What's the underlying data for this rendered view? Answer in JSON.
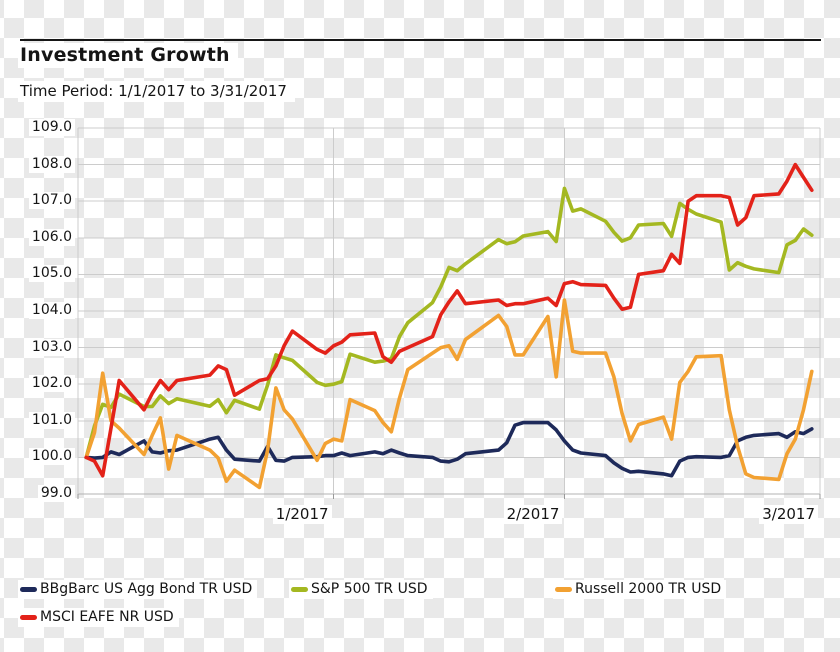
{
  "title": "Investment Growth",
  "subtitle": "Time Period: 1/1/2017 to 3/31/2017",
  "colors": {
    "bond_navy": "#1e2a5a",
    "sp500_green": "#a4b821",
    "russell_orange": "#f2a132",
    "eafe_red": "#e32219",
    "gridline": "#cccccc",
    "axis_border": "#b3b3b3",
    "tick": "#999999",
    "text": "#151515",
    "top_rule": "#161616",
    "checker_gray": "#e9e9e9",
    "checker_white": "#ffffff",
    "label_box": "#ffffff"
  },
  "chart_data": {
    "type": "line",
    "title": "Investment Growth",
    "subtitle": "Time Period: 1/1/2017 to 3/31/2017",
    "grid": true,
    "legend_position": "bottom",
    "ylim": [
      99.0,
      109.0
    ],
    "y_tick_labels": [
      "109.0",
      "108.0",
      "107.0",
      "106.0",
      "105.0",
      "104.0",
      "103.0",
      "102.0",
      "101.0",
      "100.0",
      "99.0"
    ],
    "x_ticks": [
      "1/2017",
      "2/2017",
      "3/2017"
    ],
    "x_tick_days": [
      31,
      59,
      90
    ],
    "x_axis_range_days": [
      0,
      90
    ],
    "x_unit": "calendar day offset from 1/1/2017, one point per trading day",
    "x": [
      1,
      2,
      3,
      4,
      5,
      8,
      9,
      10,
      11,
      12,
      16,
      17,
      18,
      19,
      22,
      23,
      24,
      25,
      26,
      29,
      30,
      31,
      32,
      33,
      36,
      37,
      38,
      39,
      40,
      43,
      44,
      45,
      46,
      47,
      51,
      52,
      53,
      54,
      57,
      58,
      59,
      60,
      61,
      64,
      65,
      66,
      67,
      68,
      71,
      72,
      73,
      74,
      75,
      78,
      79,
      80,
      81,
      82,
      85,
      86,
      87,
      88,
      89
    ],
    "series": [
      {
        "name": "BBgBarc US Agg Bond TR USD",
        "color": "#1e2a5a",
        "values": [
          100.0,
          99.98,
          100.0,
          100.15,
          100.08,
          100.45,
          100.15,
          100.12,
          100.18,
          100.2,
          100.5,
          100.55,
          100.2,
          99.95,
          99.9,
          100.3,
          99.92,
          99.9,
          100.0,
          100.02,
          100.05,
          100.05,
          100.12,
          100.05,
          100.15,
          100.1,
          100.2,
          100.12,
          100.05,
          100.0,
          99.9,
          99.88,
          99.95,
          100.1,
          100.2,
          100.4,
          100.88,
          100.95,
          100.95,
          100.75,
          100.45,
          100.2,
          100.12,
          100.05,
          99.85,
          99.7,
          99.6,
          99.62,
          99.55,
          99.5,
          99.9,
          100.0,
          100.02,
          100.0,
          100.05,
          100.45,
          100.55,
          100.6,
          100.65,
          100.55,
          100.7,
          100.65,
          100.78
        ]
      },
      {
        "name": "S&P 500 TR USD",
        "color": "#a4b821",
        "values": [
          100.0,
          100.86,
          101.45,
          101.37,
          101.73,
          101.39,
          101.39,
          101.68,
          101.47,
          101.6,
          101.4,
          101.58,
          101.22,
          101.56,
          101.32,
          101.98,
          102.8,
          102.72,
          102.65,
          102.05,
          101.97,
          102.0,
          102.07,
          102.82,
          102.6,
          102.63,
          102.7,
          103.3,
          103.68,
          104.23,
          104.66,
          105.19,
          105.1,
          105.29,
          105.95,
          105.84,
          105.89,
          106.05,
          106.17,
          105.9,
          107.35,
          106.73,
          106.79,
          106.45,
          106.15,
          105.91,
          106.0,
          106.35,
          106.39,
          106.04,
          106.94,
          106.78,
          106.65,
          106.43,
          105.12,
          105.32,
          105.22,
          105.15,
          105.05,
          105.81,
          105.93,
          106.24,
          106.07
        ]
      },
      {
        "name": "Russell 2000 TR USD",
        "color": "#f2a132",
        "values": [
          100.0,
          100.68,
          102.3,
          101.0,
          100.8,
          100.08,
          100.6,
          101.08,
          99.68,
          100.6,
          100.2,
          99.98,
          99.35,
          99.65,
          99.18,
          100.2,
          101.9,
          101.3,
          101.05,
          99.92,
          100.38,
          100.5,
          100.45,
          101.58,
          101.28,
          100.95,
          100.7,
          101.62,
          102.4,
          102.85,
          103.0,
          103.05,
          102.68,
          103.22,
          103.88,
          103.58,
          102.8,
          102.8,
          103.85,
          102.2,
          104.3,
          102.9,
          102.85,
          102.85,
          102.2,
          101.2,
          100.45,
          100.9,
          101.1,
          100.5,
          102.05,
          102.35,
          102.75,
          102.78,
          101.3,
          100.3,
          99.55,
          99.45,
          99.4,
          100.1,
          100.5,
          101.3,
          102.35
        ]
      },
      {
        "name": "MSCI EAFE NR USD",
        "color": "#e32219",
        "values": [
          100.0,
          99.9,
          99.5,
          100.8,
          102.1,
          101.3,
          101.75,
          102.1,
          101.85,
          102.1,
          102.25,
          102.5,
          102.4,
          101.7,
          102.1,
          102.15,
          102.5,
          103.05,
          103.45,
          102.95,
          102.85,
          103.05,
          103.15,
          103.35,
          103.4,
          102.75,
          102.6,
          102.9,
          103.0,
          103.3,
          103.9,
          104.25,
          104.55,
          104.2,
          104.3,
          104.15,
          104.2,
          104.2,
          104.35,
          104.15,
          104.75,
          104.8,
          104.72,
          104.7,
          104.35,
          104.05,
          104.1,
          105.0,
          105.1,
          105.55,
          105.3,
          107.0,
          107.15,
          107.15,
          107.1,
          106.35,
          106.55,
          107.15,
          107.2,
          107.55,
          108.0,
          107.65,
          107.3
        ]
      }
    ]
  }
}
